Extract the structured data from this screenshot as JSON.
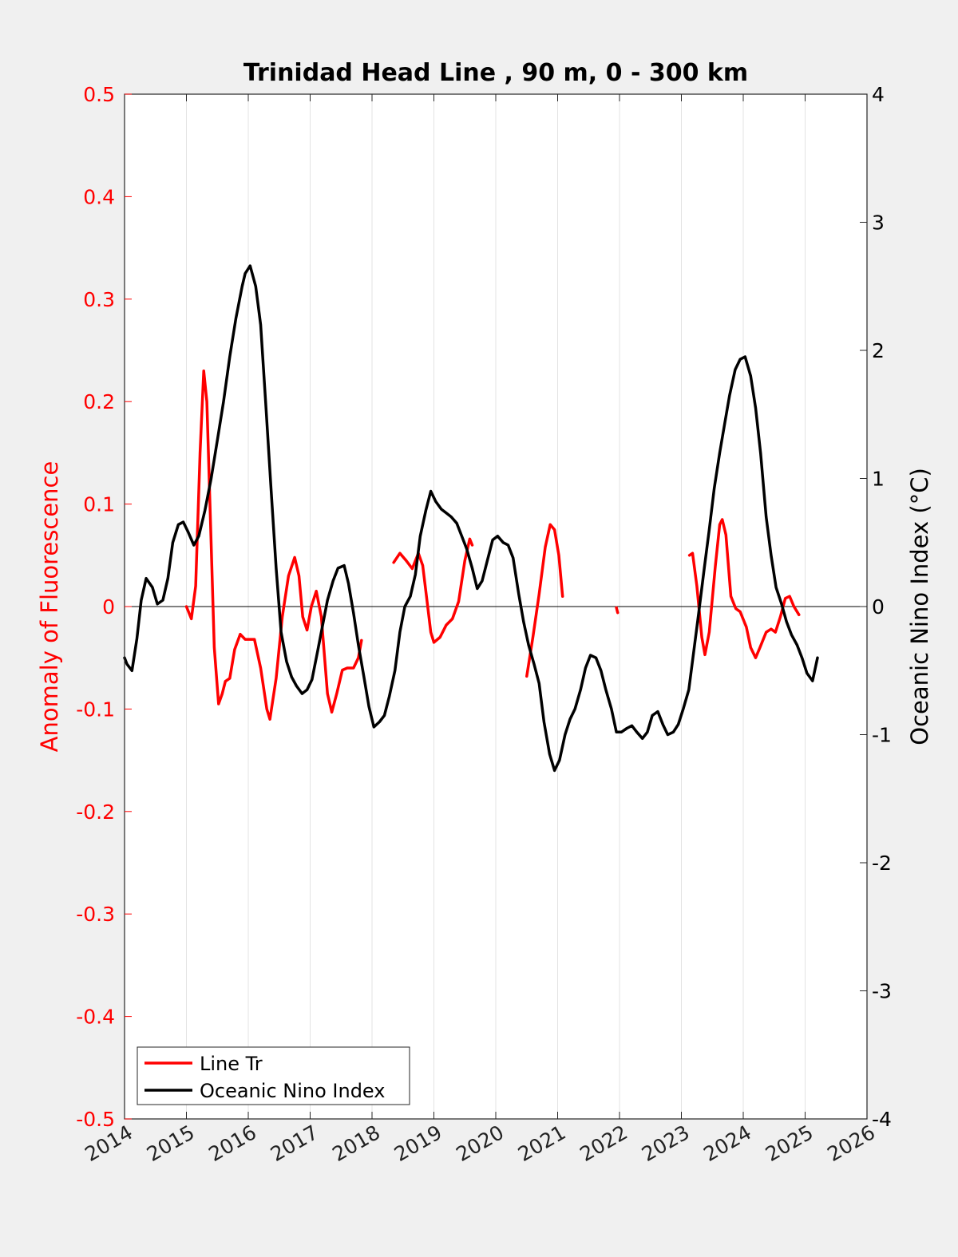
{
  "chart_data": {
    "type": "line",
    "title": "Trinidad Head Line , 90 m, 0 - 300 km",
    "xlabel": "",
    "ylabel_left": "Anomaly of Fluorescence",
    "ylabel_right": "Oceanic Nino Index (°C)",
    "xlim": [
      2014,
      2026
    ],
    "ylim_left": [
      -0.5,
      0.5
    ],
    "ylim_right": [
      -4,
      4
    ],
    "x_ticks": [
      "2014",
      "2015",
      "2016",
      "2017",
      "2018",
      "2019",
      "2020",
      "2021",
      "2022",
      "2023",
      "2024",
      "2025",
      "2026"
    ],
    "y_ticks_left": [
      "-0.5",
      "-0.4",
      "-0.3",
      "-0.2",
      "-0.1",
      "0",
      "0.1",
      "0.2",
      "0.3",
      "0.4",
      "0.5"
    ],
    "y_ticks_right": [
      "-4",
      "-3",
      "-2",
      "-1",
      "0",
      "1",
      "2",
      "3",
      "4"
    ],
    "grid": "vertical",
    "legend_position": "bottom-left",
    "colors": {
      "line_tr": "#ff0000",
      "oni": "#000000",
      "left_axis": "#ff0000",
      "right_axis": "#000000"
    },
    "series": [
      {
        "name": "Line Tr",
        "axis": "left",
        "segments": [
          [
            [
              2015.0,
              0.0
            ],
            [
              2015.08,
              -0.012
            ],
            [
              2015.15,
              0.02
            ],
            [
              2015.22,
              0.15
            ],
            [
              2015.28,
              0.23
            ],
            [
              2015.33,
              0.2
            ],
            [
              2015.38,
              0.1
            ],
            [
              2015.45,
              -0.04
            ],
            [
              2015.52,
              -0.095
            ],
            [
              2015.58,
              -0.085
            ],
            [
              2015.63,
              -0.073
            ],
            [
              2015.7,
              -0.07
            ],
            [
              2015.78,
              -0.042
            ],
            [
              2015.87,
              -0.027
            ],
            [
              2015.95,
              -0.032
            ],
            [
              2016.1,
              -0.032
            ],
            [
              2016.2,
              -0.06
            ],
            [
              2016.3,
              -0.1
            ],
            [
              2016.35,
              -0.11
            ],
            [
              2016.45,
              -0.07
            ],
            [
              2016.55,
              -0.01
            ],
            [
              2016.65,
              0.03
            ],
            [
              2016.75,
              0.048
            ],
            [
              2016.82,
              0.03
            ],
            [
              2016.88,
              -0.01
            ],
            [
              2016.95,
              -0.023
            ],
            [
              2017.02,
              0.0
            ],
            [
              2017.1,
              0.015
            ],
            [
              2017.18,
              -0.01
            ],
            [
              2017.28,
              -0.085
            ],
            [
              2017.35,
              -0.103
            ],
            [
              2017.43,
              -0.085
            ],
            [
              2017.52,
              -0.062
            ],
            [
              2017.6,
              -0.06
            ],
            [
              2017.7,
              -0.06
            ],
            [
              2017.78,
              -0.05
            ],
            [
              2017.83,
              -0.033
            ]
          ],
          [
            [
              2018.35,
              0.043
            ],
            [
              2018.45,
              0.052
            ],
            [
              2018.55,
              0.045
            ],
            [
              2018.65,
              0.037
            ],
            [
              2018.75,
              0.052
            ],
            [
              2018.82,
              0.04
            ],
            [
              2018.88,
              0.01
            ],
            [
              2018.95,
              -0.025
            ],
            [
              2019.0,
              -0.035
            ],
            [
              2019.1,
              -0.03
            ],
            [
              2019.2,
              -0.018
            ],
            [
              2019.3,
              -0.012
            ],
            [
              2019.4,
              0.005
            ],
            [
              2019.5,
              0.045
            ],
            [
              2019.58,
              0.066
            ],
            [
              2019.62,
              0.06
            ]
          ],
          [
            [
              2020.5,
              -0.068
            ],
            [
              2020.6,
              -0.03
            ],
            [
              2020.7,
              0.012
            ],
            [
              2020.8,
              0.058
            ],
            [
              2020.88,
              0.08
            ],
            [
              2020.95,
              0.075
            ],
            [
              2021.02,
              0.05
            ],
            [
              2021.08,
              0.01
            ]
          ],
          [
            [
              2021.95,
              -0.001
            ],
            [
              2021.97,
              -0.006
            ]
          ],
          [
            [
              2023.13,
              0.05
            ],
            [
              2023.18,
              0.052
            ],
            [
              2023.25,
              0.02
            ],
            [
              2023.33,
              -0.03
            ],
            [
              2023.38,
              -0.047
            ],
            [
              2023.45,
              -0.025
            ],
            [
              2023.55,
              0.04
            ],
            [
              2023.62,
              0.08
            ],
            [
              2023.66,
              0.085
            ],
            [
              2023.72,
              0.07
            ],
            [
              2023.8,
              0.01
            ],
            [
              2023.88,
              -0.002
            ],
            [
              2023.95,
              -0.005
            ],
            [
              2024.05,
              -0.02
            ],
            [
              2024.12,
              -0.04
            ],
            [
              2024.2,
              -0.05
            ],
            [
              2024.27,
              -0.04
            ],
            [
              2024.37,
              -0.025
            ],
            [
              2024.45,
              -0.022
            ],
            [
              2024.52,
              -0.025
            ],
            [
              2024.6,
              -0.01
            ],
            [
              2024.68,
              0.008
            ],
            [
              2024.75,
              0.01
            ],
            [
              2024.82,
              0.0
            ],
            [
              2024.9,
              -0.008
            ]
          ]
        ]
      },
      {
        "name": "Oceanic Nino Index",
        "axis": "right",
        "segments": [
          [
            [
              2014.0,
              -0.4
            ],
            [
              2014.04,
              -0.45
            ],
            [
              2014.12,
              -0.5
            ],
            [
              2014.2,
              -0.25
            ],
            [
              2014.27,
              0.05
            ],
            [
              2014.35,
              0.22
            ],
            [
              2014.45,
              0.15
            ],
            [
              2014.53,
              0.02
            ],
            [
              2014.62,
              0.05
            ],
            [
              2014.7,
              0.22
            ],
            [
              2014.78,
              0.5
            ],
            [
              2014.87,
              0.64
            ],
            [
              2014.95,
              0.66
            ],
            [
              2015.03,
              0.58
            ],
            [
              2015.12,
              0.48
            ],
            [
              2015.2,
              0.55
            ],
            [
              2015.3,
              0.75
            ],
            [
              2015.4,
              1.0
            ],
            [
              2015.5,
              1.3
            ],
            [
              2015.6,
              1.6
            ],
            [
              2015.7,
              1.95
            ],
            [
              2015.8,
              2.25
            ],
            [
              2015.9,
              2.5
            ],
            [
              2015.95,
              2.6
            ],
            [
              2016.03,
              2.66
            ],
            [
              2016.12,
              2.5
            ],
            [
              2016.2,
              2.2
            ],
            [
              2016.28,
              1.6
            ],
            [
              2016.37,
              0.9
            ],
            [
              2016.45,
              0.3
            ],
            [
              2016.53,
              -0.2
            ],
            [
              2016.62,
              -0.43
            ],
            [
              2016.7,
              -0.55
            ],
            [
              2016.78,
              -0.62
            ],
            [
              2016.87,
              -0.68
            ],
            [
              2016.95,
              -0.65
            ],
            [
              2017.03,
              -0.57
            ],
            [
              2017.12,
              -0.35
            ],
            [
              2017.2,
              -0.15
            ],
            [
              2017.28,
              0.05
            ],
            [
              2017.37,
              0.2
            ],
            [
              2017.45,
              0.3
            ],
            [
              2017.55,
              0.32
            ],
            [
              2017.62,
              0.18
            ],
            [
              2017.7,
              -0.05
            ],
            [
              2017.78,
              -0.3
            ],
            [
              2017.87,
              -0.55
            ],
            [
              2017.95,
              -0.78
            ],
            [
              2018.03,
              -0.94
            ],
            [
              2018.12,
              -0.9
            ],
            [
              2018.2,
              -0.85
            ],
            [
              2018.28,
              -0.7
            ],
            [
              2018.37,
              -0.5
            ],
            [
              2018.45,
              -0.2
            ],
            [
              2018.53,
              0.0
            ],
            [
              2018.62,
              0.08
            ],
            [
              2018.7,
              0.25
            ],
            [
              2018.78,
              0.55
            ],
            [
              2018.87,
              0.75
            ],
            [
              2018.95,
              0.9
            ],
            [
              2019.03,
              0.82
            ],
            [
              2019.12,
              0.76
            ],
            [
              2019.2,
              0.73
            ],
            [
              2019.28,
              0.7
            ],
            [
              2019.37,
              0.65
            ],
            [
              2019.45,
              0.55
            ],
            [
              2019.53,
              0.45
            ],
            [
              2019.62,
              0.3
            ],
            [
              2019.7,
              0.14
            ],
            [
              2019.78,
              0.2
            ],
            [
              2019.87,
              0.37
            ],
            [
              2019.95,
              0.52
            ],
            [
              2020.03,
              0.55
            ],
            [
              2020.12,
              0.5
            ],
            [
              2020.2,
              0.48
            ],
            [
              2020.28,
              0.38
            ],
            [
              2020.37,
              0.1
            ],
            [
              2020.45,
              -0.12
            ],
            [
              2020.53,
              -0.3
            ],
            [
              2020.62,
              -0.45
            ],
            [
              2020.7,
              -0.6
            ],
            [
              2020.78,
              -0.9
            ],
            [
              2020.87,
              -1.15
            ],
            [
              2020.95,
              -1.28
            ],
            [
              2021.03,
              -1.2
            ],
            [
              2021.12,
              -1.0
            ],
            [
              2021.2,
              -0.88
            ],
            [
              2021.28,
              -0.8
            ],
            [
              2021.37,
              -0.65
            ],
            [
              2021.45,
              -0.48
            ],
            [
              2021.53,
              -0.38
            ],
            [
              2021.62,
              -0.4
            ],
            [
              2021.7,
              -0.5
            ],
            [
              2021.78,
              -0.65
            ],
            [
              2021.87,
              -0.8
            ],
            [
              2021.95,
              -0.98
            ],
            [
              2022.03,
              -0.98
            ],
            [
              2022.12,
              -0.95
            ],
            [
              2022.2,
              -0.93
            ],
            [
              2022.28,
              -0.98
            ],
            [
              2022.37,
              -1.03
            ],
            [
              2022.45,
              -0.98
            ],
            [
              2022.53,
              -0.85
            ],
            [
              2022.62,
              -0.82
            ],
            [
              2022.7,
              -0.92
            ],
            [
              2022.78,
              -1.0
            ],
            [
              2022.87,
              -0.98
            ],
            [
              2022.95,
              -0.92
            ],
            [
              2023.03,
              -0.8
            ],
            [
              2023.12,
              -0.65
            ],
            [
              2023.2,
              -0.35
            ],
            [
              2023.28,
              -0.05
            ],
            [
              2023.37,
              0.3
            ],
            [
              2023.45,
              0.6
            ],
            [
              2023.53,
              0.92
            ],
            [
              2023.62,
              1.2
            ],
            [
              2023.7,
              1.43
            ],
            [
              2023.78,
              1.65
            ],
            [
              2023.87,
              1.85
            ],
            [
              2023.95,
              1.93
            ],
            [
              2024.03,
              1.95
            ],
            [
              2024.12,
              1.8
            ],
            [
              2024.2,
              1.55
            ],
            [
              2024.28,
              1.2
            ],
            [
              2024.37,
              0.7
            ],
            [
              2024.45,
              0.4
            ],
            [
              2024.53,
              0.15
            ],
            [
              2024.62,
              0.02
            ],
            [
              2024.7,
              -0.12
            ],
            [
              2024.78,
              -0.22
            ],
            [
              2024.87,
              -0.3
            ],
            [
              2024.95,
              -0.4
            ],
            [
              2025.03,
              -0.52
            ],
            [
              2025.12,
              -0.58
            ],
            [
              2025.2,
              -0.4
            ]
          ]
        ]
      }
    ]
  }
}
